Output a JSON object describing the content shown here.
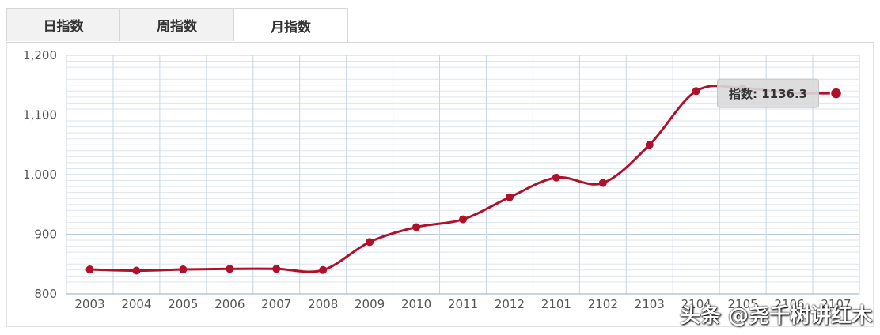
{
  "tabs": [
    {
      "label": "日指数",
      "active": false
    },
    {
      "label": "周指数",
      "active": false
    },
    {
      "label": "月指数",
      "active": true
    }
  ],
  "chart_data": {
    "type": "line",
    "categories": [
      "2003",
      "2004",
      "2005",
      "2006",
      "2007",
      "2008",
      "2009",
      "2010",
      "2011",
      "2012",
      "2101",
      "2102",
      "2103",
      "2104",
      "2105",
      "2106",
      "2107"
    ],
    "values": [
      841,
      839,
      841,
      842,
      842,
      840,
      887,
      912,
      925,
      962,
      995,
      986,
      1050,
      1140,
      1145,
      1137,
      1136.3
    ],
    "ylim": [
      800,
      1200
    ],
    "yticks": [
      "800",
      "900",
      "1,000",
      "1,100",
      "1,200"
    ],
    "grid": true,
    "line_color": "#b0102a",
    "tooltip": {
      "label": "指数:",
      "value": "1136.3"
    }
  },
  "watermark": "头条 @尧千树讲红木"
}
